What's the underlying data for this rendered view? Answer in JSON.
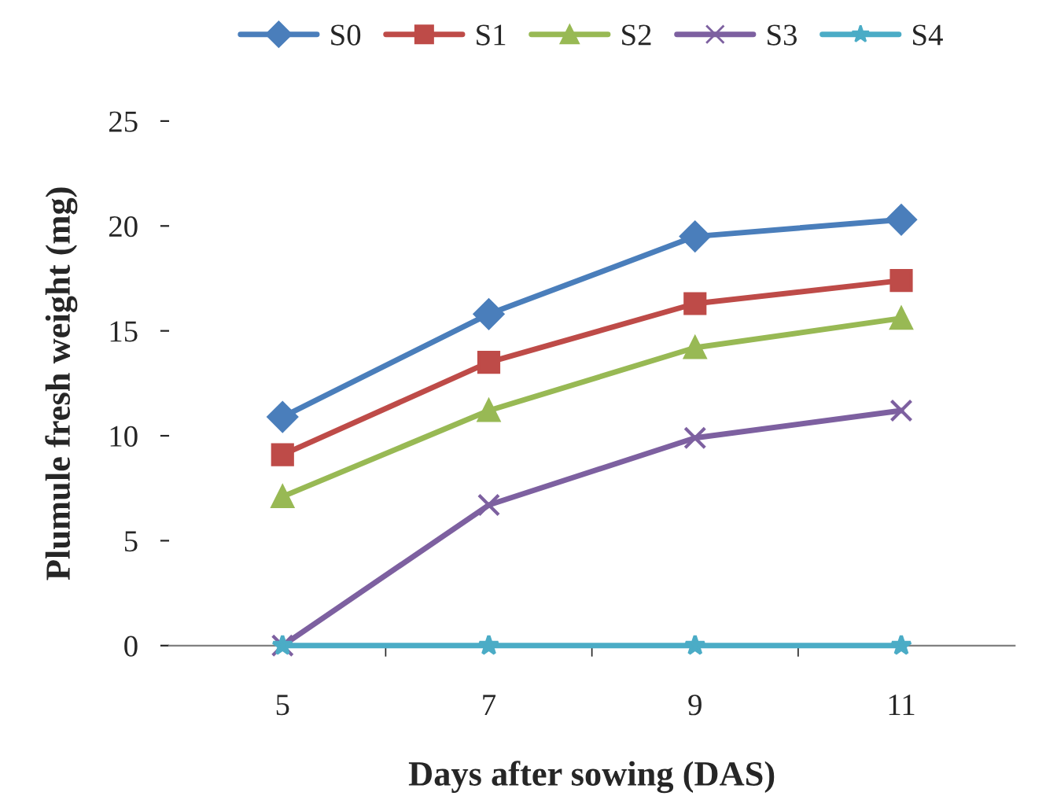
{
  "chart_data": {
    "type": "line",
    "xlabel": "Days after sowing (DAS)",
    "ylabel": "Plumule fresh weight (mg)",
    "categories": [
      "5",
      "7",
      "9",
      "11"
    ],
    "series": [
      {
        "name": "S0",
        "color": "#4a7ebb",
        "marker": "diamond",
        "values": [
          10.9,
          15.8,
          19.5,
          20.3
        ]
      },
      {
        "name": "S1",
        "color": "#be4b48",
        "marker": "square",
        "values": [
          9.1,
          13.5,
          16.3,
          17.4
        ]
      },
      {
        "name": "S2",
        "color": "#98b954",
        "marker": "triangle",
        "values": [
          7.1,
          11.2,
          14.2,
          15.6
        ]
      },
      {
        "name": "S3",
        "color": "#7d60a0",
        "marker": "cross",
        "values": [
          0,
          6.7,
          9.9,
          11.2
        ]
      },
      {
        "name": "S4",
        "color": "#4bacc6",
        "marker": "star",
        "values": [
          0,
          0,
          0,
          0
        ]
      }
    ],
    "ylim": [
      0,
      25
    ],
    "yticks": [
      0,
      5,
      10,
      15,
      20,
      25
    ],
    "grid": false,
    "legend": "top",
    "line_style": "solid"
  }
}
